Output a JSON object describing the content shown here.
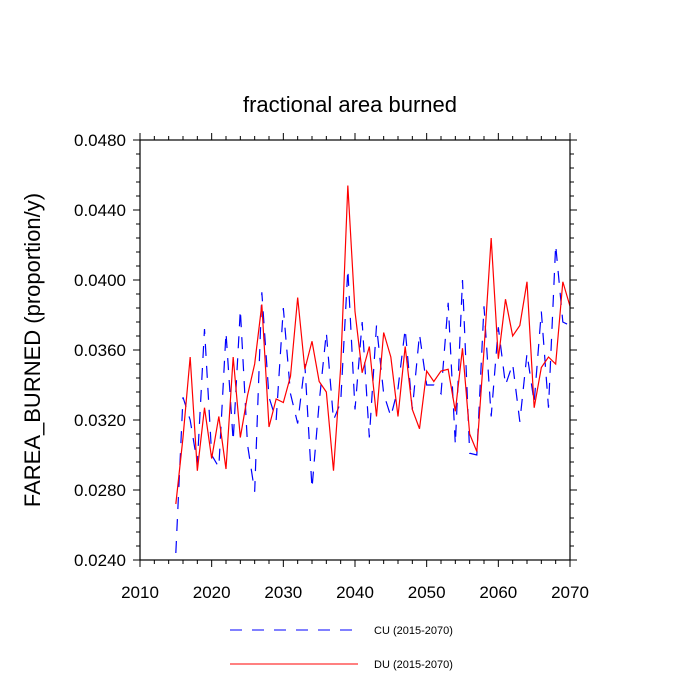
{
  "chart_data": {
    "type": "line",
    "title": "fractional area burned",
    "xlabel": "",
    "ylabel": "FAREA_BURNED  (proportion/y)",
    "xlim": [
      2010,
      2070
    ],
    "ylim": [
      0.024,
      0.048
    ],
    "xticks": [
      2010,
      2020,
      2030,
      2040,
      2050,
      2060,
      2070
    ],
    "xtick_labels": [
      "2010",
      "2020",
      "2030",
      "2040",
      "2050",
      "2060",
      "2070"
    ],
    "yticks": [
      0.024,
      0.028,
      0.032,
      0.036,
      0.04,
      0.044,
      0.048
    ],
    "ytick_labels": [
      "0.0240",
      "0.0280",
      "0.0320",
      "0.0360",
      "0.0400",
      "0.0440",
      "0.0480"
    ],
    "grid": false,
    "legend_position": "bottom",
    "x": [
      2015,
      2016,
      2017,
      2018,
      2019,
      2020,
      2021,
      2022,
      2023,
      2024,
      2025,
      2026,
      2027,
      2028,
      2029,
      2030,
      2031,
      2032,
      2033,
      2034,
      2035,
      2036,
      2037,
      2038,
      2039,
      2040,
      2041,
      2042,
      2043,
      2044,
      2045,
      2046,
      2047,
      2048,
      2049,
      2050,
      2051,
      2052,
      2053,
      2054,
      2055,
      2056,
      2057,
      2058,
      2059,
      2060,
      2061,
      2062,
      2063,
      2064,
      2065,
      2066,
      2067,
      2068,
      2069,
      2070
    ],
    "series": [
      {
        "name": "CU (2015-2070)",
        "color": "#0000ff",
        "dash": "dashed",
        "values": [
          0.0244,
          0.0333,
          0.032,
          0.0295,
          0.0372,
          0.03,
          0.0293,
          0.037,
          0.0308,
          0.0383,
          0.0306,
          0.0279,
          0.0393,
          0.0333,
          0.032,
          0.0384,
          0.0335,
          0.0318,
          0.0352,
          0.0281,
          0.033,
          0.037,
          0.032,
          0.033,
          0.0406,
          0.0326,
          0.0376,
          0.031,
          0.0374,
          0.0335,
          0.0322,
          0.0338,
          0.0372,
          0.0326,
          0.0369,
          0.034,
          0.034,
          0.0335,
          0.0387,
          0.0306,
          0.04,
          0.0301,
          0.03,
          0.0385,
          0.0322,
          0.0373,
          0.034,
          0.0352,
          0.0319,
          0.0358,
          0.033,
          0.0382,
          0.0327,
          0.042,
          0.0376,
          0.0374
        ]
      },
      {
        "name": "DU (2015-2070)",
        "color": "#ff0000",
        "dash": "solid",
        "values": [
          0.0272,
          0.031,
          0.0356,
          0.0291,
          0.0327,
          0.0298,
          0.0322,
          0.0292,
          0.0356,
          0.031,
          0.0334,
          0.0352,
          0.0386,
          0.0316,
          0.0332,
          0.033,
          0.0345,
          0.039,
          0.0349,
          0.0365,
          0.0342,
          0.0336,
          0.0291,
          0.035,
          0.0454,
          0.0382,
          0.0347,
          0.0362,
          0.0322,
          0.037,
          0.0356,
          0.0322,
          0.0362,
          0.0326,
          0.0315,
          0.0348,
          0.0342,
          0.0348,
          0.0349,
          0.0325,
          0.0361,
          0.0312,
          0.0302,
          0.036,
          0.0424,
          0.0355,
          0.0389,
          0.0368,
          0.0374,
          0.0399,
          0.0327,
          0.035,
          0.0356,
          0.0352,
          0.0399,
          0.0385
        ]
      }
    ]
  }
}
